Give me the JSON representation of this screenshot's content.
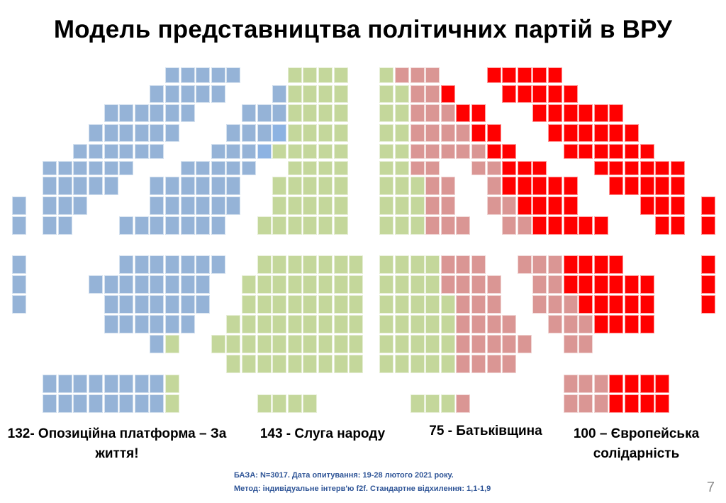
{
  "title": "Модель представництва політичних партій в ВРУ",
  "parties": [
    {
      "id": "b",
      "seats": "132",
      "label": "132- Опозиційна платформа – За життя!",
      "color": "#95b3d7"
    },
    {
      "id": "g",
      "seats": "143",
      "label": "143 - Слуга народу",
      "color": "#c4d79b"
    },
    {
      "id": "p",
      "seats": "75",
      "label": "75 - Батьківщина",
      "color": "#da9694"
    },
    {
      "id": "r",
      "seats": "100",
      "label": "100 – Європейська солідарність",
      "color": "#ff0000"
    }
  ],
  "extra_color": "#8db3e2",
  "footer": {
    "line1": "БАЗА: N=3017. Дата опитування: 19-28 лютого 2021 року.",
    "line2": "Метод: індивідуальне інтерв'ю f2f. Стандартне відхилення: 1,1-1,9"
  },
  "page_number": "7"
}
